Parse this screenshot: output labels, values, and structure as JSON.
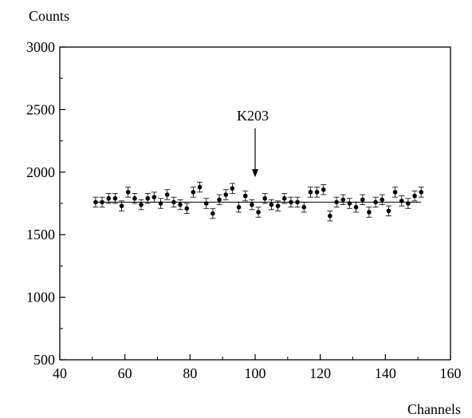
{
  "chart_data": {
    "type": "scatter",
    "title": "",
    "ylabel": "Counts",
    "xlabel": "Channels",
    "xlim": [
      40,
      160
    ],
    "ylim": [
      500,
      3000
    ],
    "xticks": [
      40,
      60,
      80,
      100,
      120,
      140,
      160
    ],
    "yticks": [
      500,
      1000,
      1500,
      2000,
      2500,
      3000
    ],
    "grid": false,
    "error_bar": 40,
    "fit_line": {
      "x": [
        51,
        151
      ],
      "y": [
        1760,
        1760
      ]
    },
    "annotation": {
      "label": "K203",
      "x": 100,
      "y_tip": 1960,
      "y_tail": 2350
    },
    "series": [
      {
        "x": [
          51,
          53,
          55,
          57,
          59,
          61,
          63,
          65,
          67,
          69,
          71,
          73,
          75,
          77,
          79,
          81,
          83,
          85,
          87,
          89,
          91,
          93,
          95,
          97,
          99,
          101,
          103,
          105,
          107,
          109,
          111,
          113,
          115,
          117,
          119,
          121,
          123,
          125,
          127,
          129,
          131,
          133,
          135,
          137,
          139,
          141,
          143,
          145,
          147,
          149,
          151
        ],
        "y": [
          1760,
          1760,
          1790,
          1790,
          1730,
          1840,
          1790,
          1740,
          1790,
          1800,
          1750,
          1820,
          1760,
          1740,
          1710,
          1840,
          1880,
          1750,
          1670,
          1780,
          1820,
          1870,
          1720,
          1810,
          1740,
          1680,
          1790,
          1740,
          1730,
          1790,
          1760,
          1760,
          1720,
          1840,
          1840,
          1860,
          1650,
          1760,
          1780,
          1750,
          1720,
          1780,
          1680,
          1760,
          1780,
          1690,
          1840,
          1770,
          1750,
          1810,
          1840
        ]
      }
    ]
  }
}
